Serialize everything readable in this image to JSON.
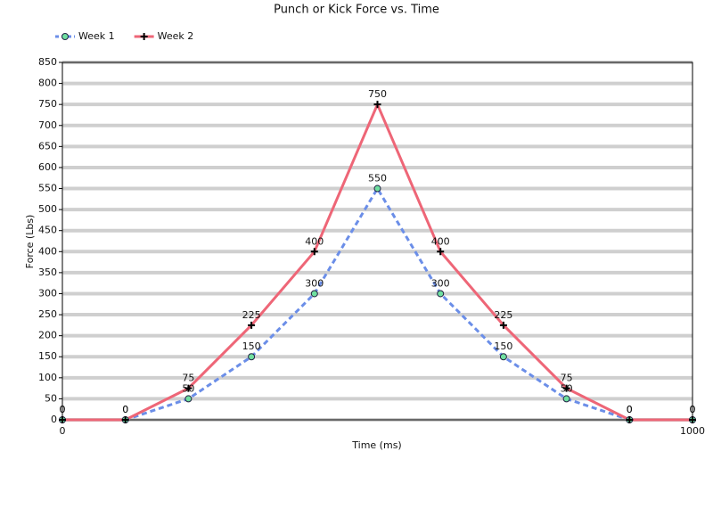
{
  "chart_data": {
    "type": "line",
    "title": "Punch or Kick Force vs. Time",
    "x_label": "Time (ms)",
    "y_label": "Force (Lbs)",
    "x": [
      0,
      100,
      200,
      300,
      400,
      500,
      600,
      700,
      800,
      900,
      1000
    ],
    "series": [
      {
        "name": "Week 1",
        "color": "#6b8ee8",
        "line_style": "dashed",
        "marker": "circle",
        "values": [
          0,
          0,
          50,
          150,
          300,
          550,
          300,
          150,
          50,
          0,
          0
        ]
      },
      {
        "name": "Week 2",
        "color": "#ee6677",
        "line_style": "solid",
        "marker": "plus",
        "values": [
          0,
          0,
          75,
          225,
          400,
          750,
          400,
          225,
          75,
          0,
          0
        ]
      }
    ],
    "xlim": [
      0,
      1000
    ],
    "xticks": [
      0,
      1000
    ],
    "ylim": [
      0,
      850
    ],
    "yticks": [
      0,
      50,
      100,
      150,
      200,
      250,
      300,
      350,
      400,
      450,
      500,
      550,
      600,
      650,
      700,
      750,
      800,
      850
    ],
    "grid": true,
    "legend": "top-left",
    "data_labels": true
  }
}
